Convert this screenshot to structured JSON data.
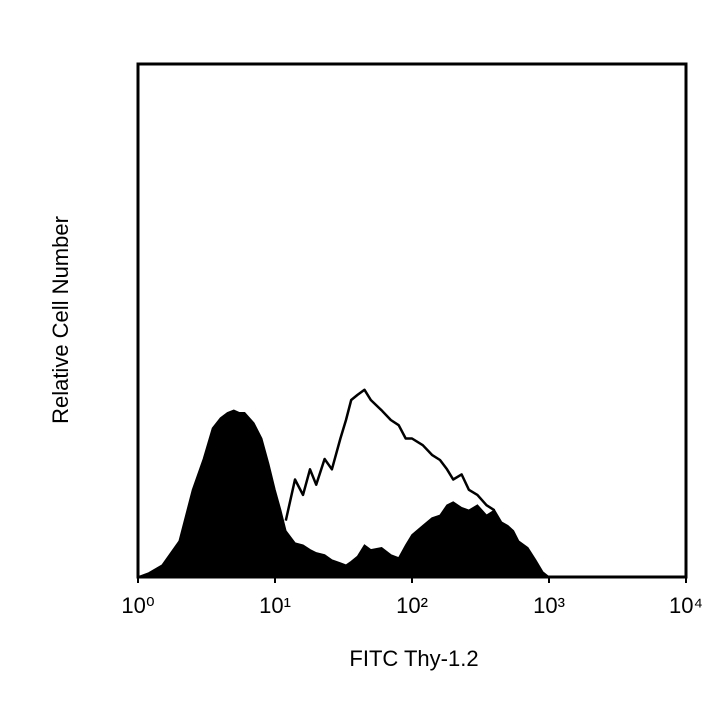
{
  "chart_data": {
    "type": "histogram-overlay",
    "xlabel": "FITC Thy-1.2",
    "ylabel": "Relative Cell Number",
    "xscale": "log",
    "xlim": [
      1,
      10000
    ],
    "ylim": [
      0,
      100
    ],
    "xticks": [
      {
        "value": 1,
        "label": "10⁰"
      },
      {
        "value": 10,
        "label": "10¹"
      },
      {
        "value": 100,
        "label": "10²"
      },
      {
        "value": 1000,
        "label": "10³"
      },
      {
        "value": 10000,
        "label": "10⁴"
      }
    ],
    "x": [
      1,
      1.2,
      1.5,
      2,
      2.5,
      3,
      3.5,
      4,
      4.5,
      5,
      5.5,
      6,
      7,
      8,
      9,
      10,
      11,
      12,
      14,
      16,
      18,
      20,
      23,
      26,
      30,
      33,
      36,
      40,
      45,
      50,
      60,
      70,
      80,
      90,
      100,
      120,
      140,
      160,
      180,
      200,
      230,
      260,
      300,
      350,
      400,
      450,
      500,
      550,
      600,
      700,
      800,
      900,
      1000
    ],
    "series": [
      {
        "style": "filled",
        "color": "#000000",
        "values": [
          0,
          0.8,
          2.3,
          7,
          17,
          23,
          29,
          31,
          32,
          32.5,
          32,
          32,
          30,
          27,
          22,
          17,
          13,
          9,
          6.6,
          6.2,
          5.3,
          4.7,
          4.3,
          3.3,
          2.7,
          2.3,
          3,
          4,
          6.2,
          5.3,
          5.7,
          4.3,
          3.7,
          6.2,
          8.2,
          10,
          11.5,
          12,
          14,
          14.6,
          13.5,
          13,
          14,
          12,
          13,
          10.7,
          10,
          9,
          7,
          5.7,
          3.3,
          1,
          0
        ]
      },
      {
        "style": "outline",
        "color": "#000000",
        "values": [
          null,
          null,
          null,
          null,
          null,
          null,
          null,
          null,
          null,
          null,
          null,
          null,
          null,
          null,
          null,
          null,
          null,
          11,
          19,
          16,
          21,
          18,
          23,
          21,
          27,
          30.6,
          34.5,
          35.5,
          36.5,
          34.5,
          32.5,
          30.6,
          29.6,
          27,
          27,
          25.7,
          23.8,
          22.8,
          21,
          19,
          20,
          17,
          16,
          14,
          13,
          null,
          null,
          null,
          null,
          null,
          null,
          null,
          null
        ]
      }
    ]
  }
}
